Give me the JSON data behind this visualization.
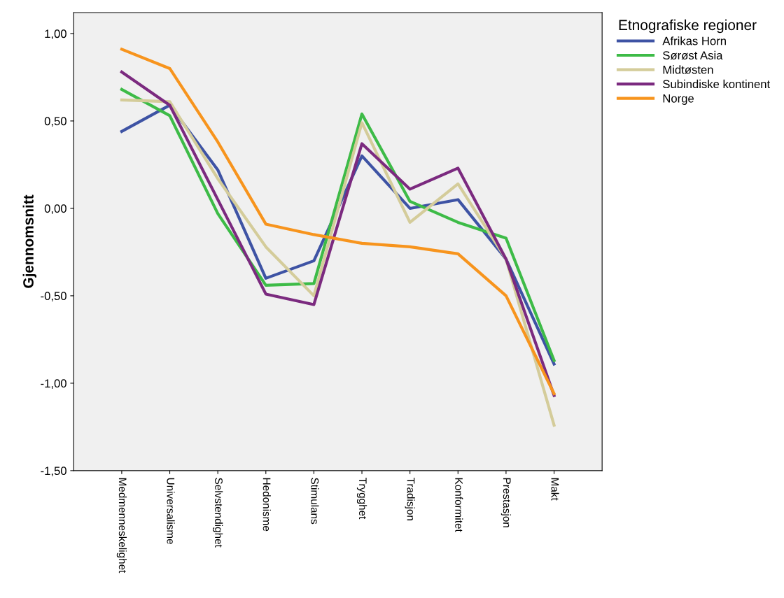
{
  "chart_data": {
    "type": "line",
    "ylabel": "Gjennomsnitt",
    "legend_title": "Etnografiske regioner",
    "legend": "top right",
    "grid": false,
    "marker": "none",
    "line_style": "solid",
    "categories": [
      "Medmenneskelighet",
      "Universalisme",
      "Selvstendighet",
      "Hedonisme",
      "Stimulans",
      "Trygghet",
      "Tradisjon",
      "Konformitet",
      "Prestasjon",
      "Makt"
    ],
    "ylim": [
      -1.5,
      1.12
    ],
    "yticks": [
      {
        "value": -1.5,
        "label": "-1,50"
      },
      {
        "value": -1.0,
        "label": "-1,00"
      },
      {
        "value": -0.5,
        "label": "-0,50"
      },
      {
        "value": 0.0,
        "label": "0,00"
      },
      {
        "value": 0.5,
        "label": "0,50"
      },
      {
        "value": 1.0,
        "label": "1,00"
      }
    ],
    "series": [
      {
        "name": "Afrikas Horn",
        "color": "#3e53a4",
        "values": [
          0.44,
          0.59,
          0.22,
          -0.4,
          -0.3,
          0.3,
          0.0,
          0.05,
          -0.29,
          -0.89
        ]
      },
      {
        "name": "Sørøst Asia",
        "color": "#3dbb47",
        "values": [
          0.68,
          0.53,
          -0.03,
          -0.44,
          -0.43,
          0.54,
          0.04,
          -0.08,
          -0.17,
          -0.87
        ]
      },
      {
        "name": "Midtøsten",
        "color": "#d4cc9a",
        "values": [
          0.62,
          0.61,
          0.17,
          -0.22,
          -0.5,
          0.49,
          -0.08,
          0.14,
          -0.29,
          -1.24
        ]
      },
      {
        "name": "Subindiske kontinent",
        "color": "#7b2a7f",
        "values": [
          0.78,
          0.59,
          0.05,
          -0.49,
          -0.55,
          0.37,
          0.11,
          0.23,
          -0.29,
          -1.07
        ]
      },
      {
        "name": "Norge",
        "color": "#f7941d",
        "values": [
          0.91,
          0.8,
          0.38,
          -0.09,
          -0.15,
          -0.2,
          -0.22,
          -0.26,
          -0.5,
          -1.06
        ]
      }
    ]
  }
}
